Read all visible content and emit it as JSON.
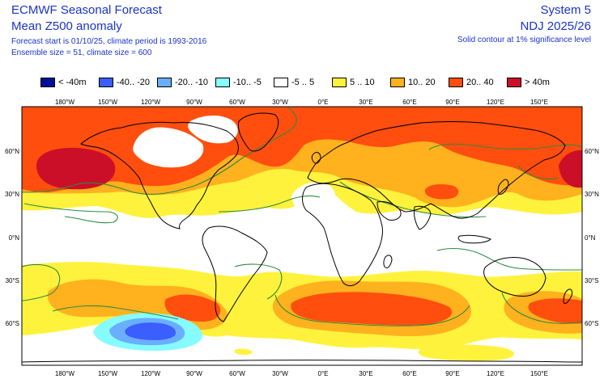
{
  "header": {
    "title": "ECMWF Seasonal Forecast",
    "subtitle": "Mean Z500 anomaly",
    "forecast_info": "Forecast start is 01/10/25, climate period is 1993-2016",
    "ensemble_info": "Ensemble size = 51, climate size = 600",
    "system": "System 5",
    "period": "NDJ 2025/26",
    "contour_note": "Solid contour at 1% significance level"
  },
  "legend": [
    {
      "label": "< -40m",
      "color": "#000f99"
    },
    {
      "label": "-40.. -20",
      "color": "#3a5eff"
    },
    {
      "label": "-20.. -10",
      "color": "#6aaeff"
    },
    {
      "label": "-10.. -5",
      "color": "#86fcff"
    },
    {
      "label": "-5 .. 5",
      "color": "#ffffff"
    },
    {
      "label": "5 .. 10",
      "color": "#fff23c"
    },
    {
      "label": "10.. 20",
      "color": "#ffb11e"
    },
    {
      "label": "20.. 40",
      "color": "#ff4e0e"
    },
    {
      "label": "> 40m",
      "color": "#cc0f28"
    }
  ],
  "axes": {
    "lon_labels": [
      "180°W",
      "150°W",
      "120°W",
      "90°W",
      "60°W",
      "30°W",
      "0°E",
      "30°E",
      "60°E",
      "90°E",
      "120°E",
      "150°E"
    ],
    "lat_labels": [
      "60°N",
      "30°N",
      "0°N",
      "30°S",
      "60°S"
    ]
  },
  "colors": {
    "contour": "#2e8b3e",
    "coast": "#000000",
    "frame": "#000000"
  }
}
